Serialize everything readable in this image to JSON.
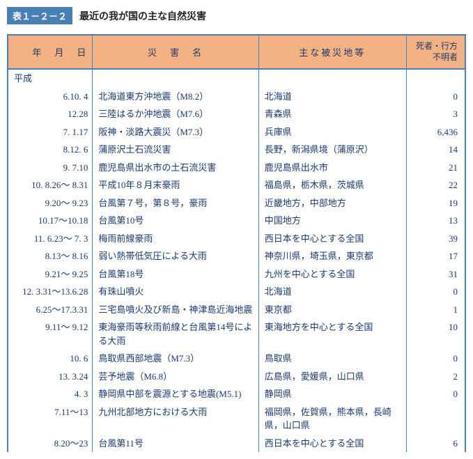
{
  "title": {
    "tag": "表１－２－２",
    "text": "最近の我が国の主な自然災害"
  },
  "columns": {
    "date": "年　月　日",
    "name": "災　害　名",
    "area": "主な被災地等",
    "casualties": "死者・行方不明者"
  },
  "era": "平成",
  "rows": [
    {
      "date": "6.10. 4",
      "name": "北海道東方沖地震（M8.2）",
      "area": "北海道",
      "n": "0"
    },
    {
      "date": "12.28",
      "name": "三陸はるか沖地震（M7.6）",
      "area": "青森県",
      "n": "3"
    },
    {
      "date": "7. 1.17",
      "name": "阪神・淡路大震災（M7.3）",
      "area": "兵庫県",
      "n": "6,436"
    },
    {
      "date": "8.12. 6",
      "name": "蒲原沢土石流災害",
      "area": "長野，新潟県境（蒲原沢）",
      "n": "14"
    },
    {
      "date": "9. 7.10",
      "name": "鹿児島県出水市の土石流災害",
      "area": "鹿児島県出水市",
      "n": "21"
    },
    {
      "date": "10. 8.26～ 8.31",
      "name": "平成10年８月末豪雨",
      "area": "福島県，栃木県，茨城県",
      "n": "22"
    },
    {
      "date": "9.20～ 9.23",
      "name": "台風第７号，第８号，豪雨",
      "area": "近畿地方，中部地方",
      "n": "19"
    },
    {
      "date": "10.17～10.18",
      "name": "台風第10号",
      "area": "中国地方",
      "n": "13"
    },
    {
      "date": "11. 6.23～ 7. 3",
      "name": "梅雨前線豪雨",
      "area": "西日本を中心とする全国",
      "n": "39"
    },
    {
      "date": "8.13～ 8.16",
      "name": "弱い熱帯低気圧による大雨",
      "area": "神奈川県，埼玉県，東京都",
      "n": "17"
    },
    {
      "date": "9.21～ 9.25",
      "name": "台風第18号",
      "area": "九州を中心とする全国",
      "n": "31"
    },
    {
      "date": "12. 3.31～13.6.28",
      "name": "有珠山噴火",
      "area": "北海道",
      "n": "0"
    },
    {
      "date": "6.25～17.3.31",
      "name": "三宅島噴火及び新島・神津島近海地震",
      "area": "東京都",
      "n": "1"
    },
    {
      "date": "9.11～ 9.12",
      "name": "東海豪雨等秋雨前線と台風第14号による大雨",
      "area": "東海地方を中心とする全国",
      "n": "10"
    },
    {
      "date": "10. 6",
      "name": "鳥取県西部地震（M7.3）",
      "area": "鳥取県",
      "n": "0"
    },
    {
      "date": "13. 3.24",
      "name": "芸予地震（M6.8）",
      "area": "広島県，愛媛県，山口県",
      "n": "2"
    },
    {
      "date": "4. 3",
      "name": "静岡県中部を震源とする地震(M5.1)",
      "area": "静岡県",
      "n": "0"
    },
    {
      "date": "7.11～13",
      "name": "九州北部地方における大雨",
      "area": "福岡県，佐賀県，熊本県，長崎県，山口県",
      "n": ""
    },
    {
      "date": "8.20～23",
      "name": "台風第11号",
      "area": "西日本を中心とする全国",
      "n": "6"
    }
  ]
}
